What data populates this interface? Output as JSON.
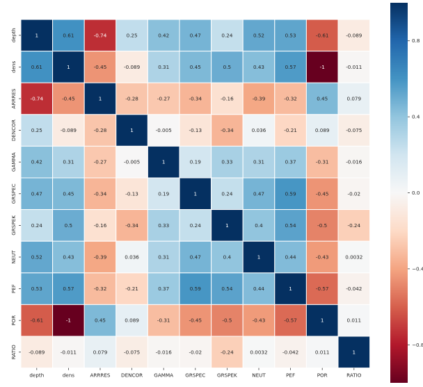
{
  "chart_data": {
    "type": "heatmap",
    "title": "",
    "xlabel": "",
    "ylabel": "",
    "labels": [
      "depth",
      "dens",
      "ARRRES",
      "DENCOR",
      "GAMMA",
      "GRSPEC",
      "GRSPEK",
      "NEUT",
      "PEF",
      "POR",
      "RATIO"
    ],
    "cell_text": [
      [
        "1",
        "0.61",
        "-0.74",
        "0.25",
        "0.42",
        "0.47",
        "0.24",
        "0.52",
        "0.53",
        "-0.61",
        "-0.089"
      ],
      [
        "0.61",
        "1",
        "-0.45",
        "-0.089",
        "0.31",
        "0.45",
        "0.5",
        "0.43",
        "0.57",
        "-1",
        "-0.011"
      ],
      [
        "-0.74",
        "-0.45",
        "1",
        "-0.28",
        "-0.27",
        "-0.34",
        "-0.16",
        "-0.39",
        "-0.32",
        "0.45",
        "0.079"
      ],
      [
        "0.25",
        "-0.089",
        "-0.28",
        "1",
        "-0.005",
        "-0.13",
        "-0.34",
        "0.036",
        "-0.21",
        "0.089",
        "-0.075"
      ],
      [
        "0.42",
        "0.31",
        "-0.27",
        "-0.005",
        "1",
        "0.19",
        "0.33",
        "0.31",
        "0.37",
        "-0.31",
        "-0.016"
      ],
      [
        "0.47",
        "0.45",
        "-0.34",
        "-0.13",
        "0.19",
        "1",
        "0.24",
        "0.47",
        "0.59",
        "-0.45",
        "-0.02"
      ],
      [
        "0.24",
        "0.5",
        "-0.16",
        "-0.34",
        "0.33",
        "0.24",
        "1",
        "0.4",
        "0.54",
        "-0.5",
        "-0.24"
      ],
      [
        "0.52",
        "0.43",
        "-0.39",
        "0.036",
        "0.31",
        "0.47",
        "0.4",
        "1",
        "0.44",
        "-0.43",
        "0.0032"
      ],
      [
        "0.53",
        "0.57",
        "-0.32",
        "-0.21",
        "0.37",
        "0.59",
        "0.54",
        "0.44",
        "1",
        "-0.57",
        "-0.042"
      ],
      [
        "-0.61",
        "-1",
        "0.45",
        "0.089",
        "-0.31",
        "-0.45",
        "-0.5",
        "-0.43",
        "-0.57",
        "1",
        "0.011"
      ],
      [
        "-0.089",
        "-0.011",
        "0.079",
        "-0.075",
        "-0.016",
        "-0.02",
        "-0.24",
        "0.0032",
        "-0.042",
        "0.011",
        "1"
      ]
    ],
    "colorbar": {
      "range": [
        -1,
        1
      ],
      "ticks": [
        0.8,
        0.4,
        0.0,
        -0.4,
        -0.8
      ],
      "tick_labels": [
        "0.8",
        "0.4",
        "0.0",
        "−0.4",
        "−0.8"
      ]
    },
    "colormap": "RdBu",
    "colorscale_stops": [
      "#67001f",
      "#b2182b",
      "#d6604d",
      "#f4a582",
      "#fddbc7",
      "#f7f7f7",
      "#d1e5f0",
      "#92c5de",
      "#4393c3",
      "#2166ac",
      "#053061"
    ],
    "grid_color": "#ffffff"
  }
}
